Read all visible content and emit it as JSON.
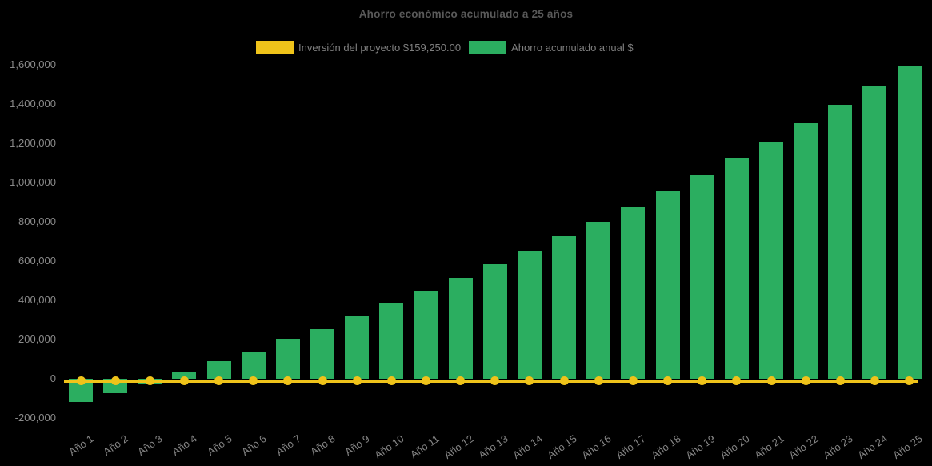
{
  "chart_data": {
    "type": "bar",
    "title": "Ahorro económico acumulado a 25 años",
    "background_color": "#000000",
    "grid": false,
    "legend_position": "top-center",
    "categories": [
      "Año 1",
      "Año 2",
      "Año 3",
      "Año 4",
      "Año 5",
      "Año 6",
      "Año 7",
      "Año 8",
      "Año 9",
      "Año 10",
      "Año 11",
      "Año 12",
      "Año 13",
      "Año 14",
      "Año 15",
      "Año 16",
      "Año 17",
      "Año 18",
      "Año 19",
      "Año 20",
      "Año 21",
      "Año 22",
      "Año 23",
      "Año 24",
      "Año 25"
    ],
    "series": [
      {
        "name": "Inversión del proyecto $159,250.00",
        "type": "line",
        "color": "#EFC31A",
        "marker": "circle",
        "investment_amount_shown_in_legend": 159250,
        "values": [
          0,
          0,
          0,
          0,
          0,
          0,
          0,
          0,
          0,
          0,
          0,
          0,
          0,
          0,
          0,
          0,
          0,
          0,
          0,
          0,
          0,
          0,
          0,
          0,
          0
        ]
      },
      {
        "name": "Ahorro acumulado anual $",
        "type": "bar",
        "color": "#2BAE60",
        "values": [
          -120000,
          -75000,
          -25000,
          35000,
          90000,
          140000,
          200000,
          255000,
          320000,
          385000,
          445000,
          515000,
          585000,
          655000,
          725000,
          800000,
          875000,
          955000,
          1035000,
          1125000,
          1210000,
          1305000,
          1395000,
          1495000,
          1590000
        ]
      }
    ],
    "ylim": [
      -200000,
      1600000
    ],
    "ytick_step": 200000,
    "ytick_labels": [
      "1,600,000",
      "1,400,000",
      "1,200,000",
      "1,000,000",
      "800,000",
      "600,000",
      "400,000",
      "200,000",
      "0",
      "-200,000"
    ],
    "text_colors": {
      "title": "#595959",
      "axis_labels": "#8a8a8a",
      "legend": "#7f7f7f"
    }
  }
}
